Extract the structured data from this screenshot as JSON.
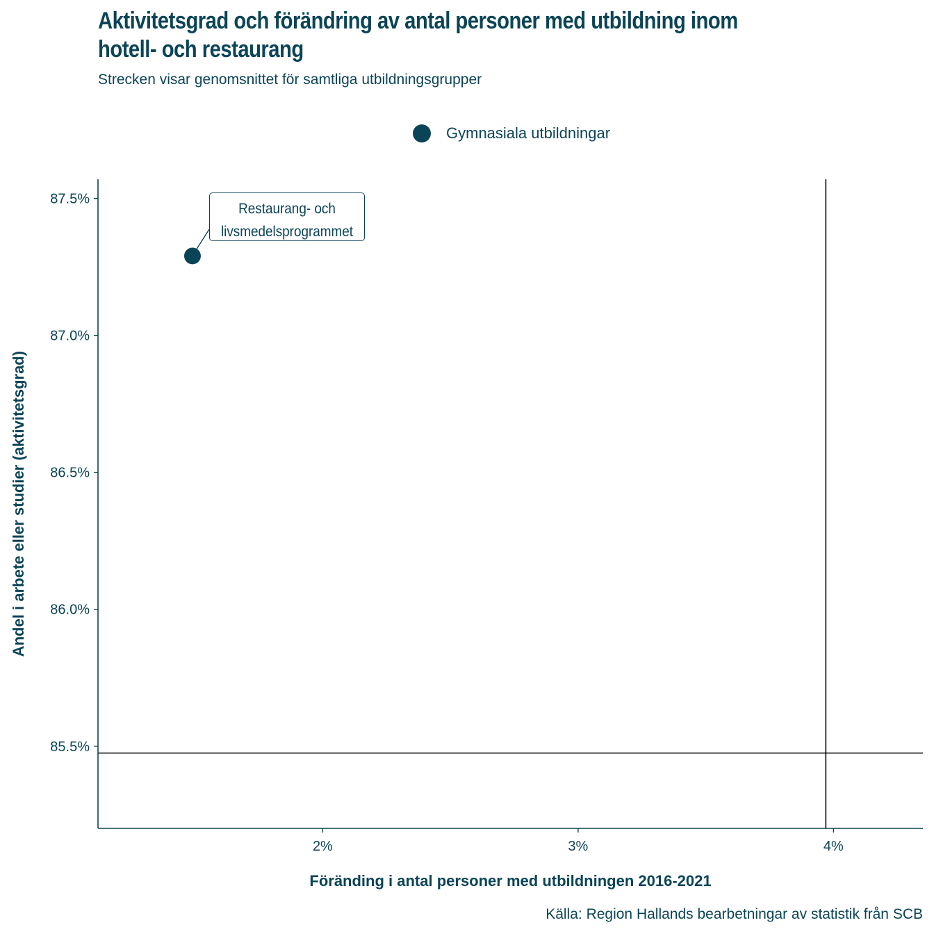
{
  "title": "Aktivitetsgrad och förändring av antal personer med utbildning inom hotell- och restaurang",
  "subtitle": "Strecken visar genomsnittet för samtliga utbildningsgrupper",
  "caption": "Källa: Region Hallands bearbetningar av statistik från SCB",
  "colors": {
    "text": "#0b4457",
    "point": "#0b4457",
    "refline": "#000000",
    "background": "#ffffff"
  },
  "chart_data": {
    "type": "scatter",
    "xlabel": "Föränding i antal personer med utbildningen 2016-2021",
    "ylabel": "Andel i arbete eller studier (aktivitetsgrad)",
    "xlim": [
      0.0112,
      0.0435
    ],
    "ylim": [
      85.2,
      87.57
    ],
    "x_ticks": [
      0.02,
      0.03,
      0.04
    ],
    "x_tick_labels": [
      "2%",
      "3%",
      "4%"
    ],
    "y_ticks": [
      85.5,
      86.0,
      86.5,
      87.0,
      87.5
    ],
    "y_tick_labels": [
      "85.5%",
      "86.0%",
      "86.5%",
      "87.0%",
      "87.5%"
    ],
    "grid": false,
    "legend_position": "top",
    "series": [
      {
        "name": "Gymnasiala utbildningar",
        "points": [
          {
            "x": 0.0149,
            "y": 87.29,
            "label": "Restaurang- och livsmedelsprogrammet"
          }
        ]
      }
    ],
    "reference_lines": {
      "x_mean": 0.0397,
      "y_mean": 85.475
    },
    "annotations": [
      {
        "line1": "Restaurang- och",
        "line2": "livsmedelsprogrammet"
      }
    ]
  }
}
